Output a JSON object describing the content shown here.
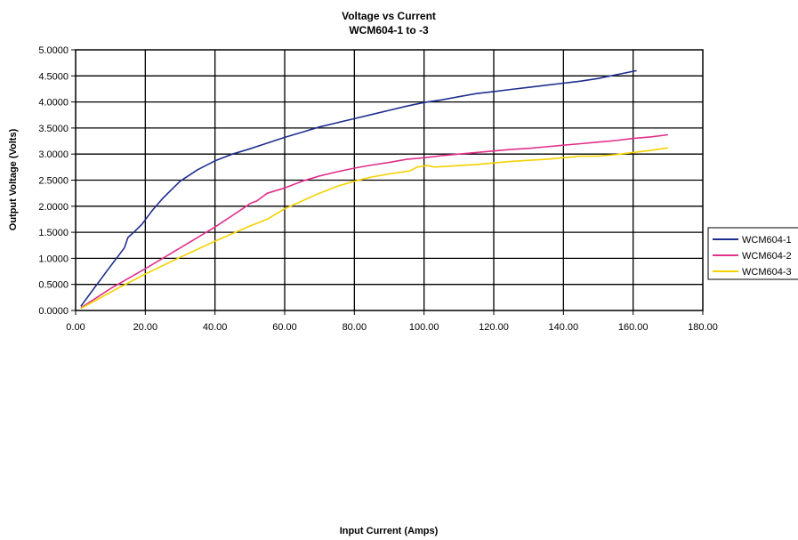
{
  "chart_data": {
    "type": "line",
    "title": "Voltage vs Current",
    "subtitle": "WCM604-1 to -3",
    "xlabel": "Input Current (Amps)",
    "ylabel": "Output Voltage (Volts)",
    "xlim": [
      0,
      180
    ],
    "ylim": [
      0,
      5
    ],
    "xticks": [
      "0.00",
      "20.00",
      "40.00",
      "60.00",
      "80.00",
      "100.00",
      "120.00",
      "140.00",
      "160.00",
      "180.00"
    ],
    "yticks": [
      "0.0000",
      "0.5000",
      "1.0000",
      "1.5000",
      "2.0000",
      "2.5000",
      "3.0000",
      "3.5000",
      "4.0000",
      "4.5000",
      "5.0000"
    ],
    "grid": true,
    "legend_position": "right",
    "series": [
      {
        "name": "WCM604-1",
        "color": "#1f2f8f",
        "points": [
          [
            1.5,
            0.08
          ],
          [
            5,
            0.4
          ],
          [
            10,
            0.85
          ],
          [
            14,
            1.2
          ],
          [
            15,
            1.4
          ],
          [
            17,
            1.52
          ],
          [
            19,
            1.65
          ],
          [
            22,
            1.92
          ],
          [
            25,
            2.15
          ],
          [
            28,
            2.35
          ],
          [
            30,
            2.48
          ],
          [
            35,
            2.7
          ],
          [
            40,
            2.87
          ],
          [
            45,
            3.0
          ],
          [
            50,
            3.1
          ],
          [
            55,
            3.21
          ],
          [
            60,
            3.32
          ],
          [
            65,
            3.42
          ],
          [
            70,
            3.52
          ],
          [
            75,
            3.6
          ],
          [
            80,
            3.68
          ],
          [
            85,
            3.76
          ],
          [
            90,
            3.84
          ],
          [
            95,
            3.92
          ],
          [
            100,
            3.99
          ],
          [
            105,
            4.04
          ],
          [
            110,
            4.1
          ],
          [
            115,
            4.16
          ],
          [
            120,
            4.2
          ],
          [
            125,
            4.24
          ],
          [
            130,
            4.28
          ],
          [
            135,
            4.32
          ],
          [
            140,
            4.36
          ],
          [
            145,
            4.4
          ],
          [
            150,
            4.45
          ],
          [
            155,
            4.52
          ],
          [
            161,
            4.6
          ]
        ]
      },
      {
        "name": "WCM604-2",
        "color": "#e0308a",
        "points": [
          [
            1.5,
            0.05
          ],
          [
            10,
            0.42
          ],
          [
            20,
            0.8
          ],
          [
            30,
            1.2
          ],
          [
            40,
            1.6
          ],
          [
            49,
            2.0
          ],
          [
            50,
            2.05
          ],
          [
            52,
            2.1
          ],
          [
            55,
            2.25
          ],
          [
            60,
            2.35
          ],
          [
            65,
            2.48
          ],
          [
            70,
            2.58
          ],
          [
            75,
            2.66
          ],
          [
            80,
            2.73
          ],
          [
            85,
            2.79
          ],
          [
            90,
            2.84
          ],
          [
            95,
            2.9
          ],
          [
            100,
            2.93
          ],
          [
            105,
            2.97
          ],
          [
            110,
            3.0
          ],
          [
            115,
            3.03
          ],
          [
            120,
            3.06
          ],
          [
            125,
            3.09
          ],
          [
            130,
            3.11
          ],
          [
            135,
            3.14
          ],
          [
            140,
            3.17
          ],
          [
            145,
            3.2
          ],
          [
            150,
            3.23
          ],
          [
            155,
            3.26
          ],
          [
            160,
            3.3
          ],
          [
            165,
            3.33
          ],
          [
            170,
            3.37
          ]
        ]
      },
      {
        "name": "WCM604-3",
        "color": "#f5d100",
        "points": [
          [
            1.5,
            0.04
          ],
          [
            10,
            0.35
          ],
          [
            20,
            0.7
          ],
          [
            30,
            1.02
          ],
          [
            40,
            1.33
          ],
          [
            50,
            1.62
          ],
          [
            55,
            1.75
          ],
          [
            60,
            1.95
          ],
          [
            65,
            2.1
          ],
          [
            70,
            2.25
          ],
          [
            75,
            2.38
          ],
          [
            80,
            2.48
          ],
          [
            85,
            2.56
          ],
          [
            90,
            2.62
          ],
          [
            96,
            2.68
          ],
          [
            98,
            2.75
          ],
          [
            101,
            2.78
          ],
          [
            103,
            2.75
          ],
          [
            110,
            2.78
          ],
          [
            115,
            2.8
          ],
          [
            120,
            2.83
          ],
          [
            125,
            2.86
          ],
          [
            130,
            2.88
          ],
          [
            135,
            2.9
          ],
          [
            140,
            2.93
          ],
          [
            145,
            2.96
          ],
          [
            150,
            2.96
          ],
          [
            155,
            2.99
          ],
          [
            160,
            3.03
          ],
          [
            165,
            3.07
          ],
          [
            170,
            3.12
          ]
        ]
      }
    ]
  }
}
